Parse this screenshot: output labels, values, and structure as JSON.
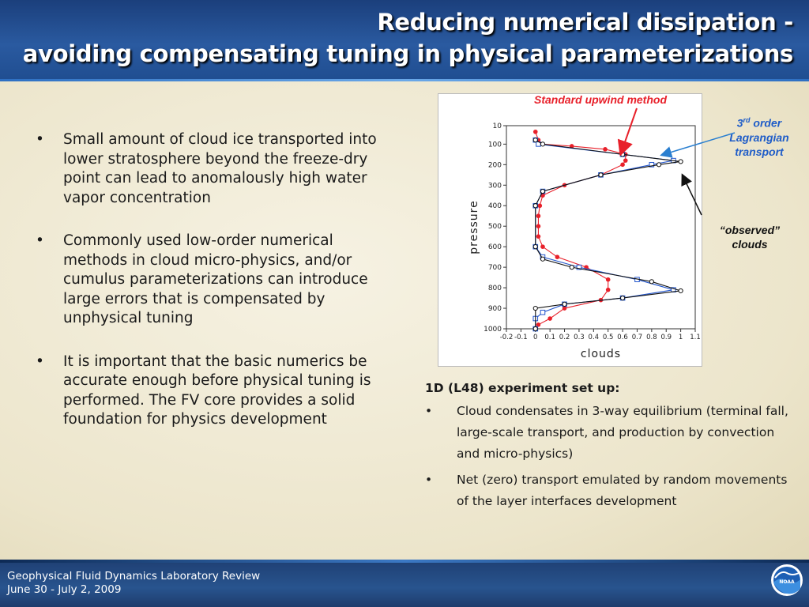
{
  "slide": {
    "title_line1": "Reducing numerical dissipation -",
    "title_line2": "avoiding compensating tuning in physical parameterizations"
  },
  "left_bullets": [
    {
      "text": "Small amount of cloud ice transported into lower stratosphere beyond the freeze-dry point  can lead to anomalously  high water vapor concentration"
    },
    {
      "text": "Commonly used low-order numerical methods in cloud micro-physics, and/or cumulus parameterizations can introduce large errors that is compensated by unphysical tuning"
    },
    {
      "text": "It is important that the basic numerics be accurate enough before physical tuning is performed. The FV core provides a solid foundation for physics development"
    }
  ],
  "bullet_char": "•",
  "annotations": {
    "standard_upwind": "Standard upwind method",
    "lagrangian_sup": "rd",
    "lagrangian_pre": "3",
    "lagrangian_rest": " order Lagrangian transport",
    "observed": "“observed” clouds"
  },
  "right": {
    "heading": "1D (L48) experiment set up:",
    "items": [
      {
        "text": "Cloud condensates in 3-way equilibrium (terminal fall, large-scale transport, and production by convection and micro-physics)"
      },
      {
        "text": "Net (zero) transport emulated by random movements of the layer interfaces development"
      }
    ]
  },
  "footer": {
    "line1": "Geophysical Fluid Dynamics Laboratory Review",
    "line2": "June 30 - July 2, 2009",
    "logo_text": "NOAA"
  },
  "colors": {
    "upwind": "#e8202a",
    "lagrangian": "#2255cc",
    "observed": "#111111"
  },
  "chart_data": {
    "type": "line",
    "xlabel": "clouds",
    "ylabel": "pressure",
    "xlim": [
      -0.2,
      1.1
    ],
    "ylim": [
      1000,
      10
    ],
    "xticks": [
      -0.2,
      -0.1,
      0,
      0.1,
      0.2,
      0.3,
      0.4,
      0.5,
      0.6,
      0.7,
      0.8,
      0.9,
      1,
      1.1
    ],
    "xtick_labels": [
      "-0.2",
      "-0.1",
      "0",
      "0.1",
      "0.2",
      "0.3",
      "0.4",
      "0.5",
      "0.6",
      "0.7",
      "0.8",
      "0.9",
      "1",
      "1.1"
    ],
    "yticks": [
      10,
      100,
      200,
      300,
      400,
      500,
      600,
      700,
      800,
      900,
      1000
    ],
    "series": [
      {
        "name": "Standard upwind method",
        "color": "#e8202a",
        "marker": "circle-filled",
        "points": [
          [
            0,
            40
          ],
          [
            0.02,
            80
          ],
          [
            0.05,
            100
          ],
          [
            0.25,
            110
          ],
          [
            0.48,
            125
          ],
          [
            0.62,
            150
          ],
          [
            0.62,
            180
          ],
          [
            0.6,
            200
          ],
          [
            0.45,
            250
          ],
          [
            0.2,
            300
          ],
          [
            0.05,
            350
          ],
          [
            0.03,
            400
          ],
          [
            0.02,
            450
          ],
          [
            0.02,
            500
          ],
          [
            0.02,
            550
          ],
          [
            0.05,
            600
          ],
          [
            0.15,
            650
          ],
          [
            0.35,
            700
          ],
          [
            0.5,
            760
          ],
          [
            0.5,
            810
          ],
          [
            0.45,
            860
          ],
          [
            0.2,
            900
          ],
          [
            0.1,
            950
          ],
          [
            0.02,
            980
          ]
        ]
      },
      {
        "name": "3rd order Lagrangian transport",
        "color": "#2255cc",
        "marker": "square-open",
        "points": [
          [
            0,
            80
          ],
          [
            0.02,
            100
          ],
          [
            0.6,
            150
          ],
          [
            0.95,
            180
          ],
          [
            0.8,
            200
          ],
          [
            0.45,
            250
          ],
          [
            0.05,
            330
          ],
          [
            0,
            400
          ],
          [
            0,
            600
          ],
          [
            0.05,
            650
          ],
          [
            0.3,
            700
          ],
          [
            0.7,
            760
          ],
          [
            0.95,
            810
          ],
          [
            0.6,
            850
          ],
          [
            0.2,
            880
          ],
          [
            0.05,
            920
          ],
          [
            0,
            950
          ],
          [
            0,
            1000
          ]
        ]
      },
      {
        "name": "“observed” clouds",
        "color": "#111111",
        "marker": "circle-open",
        "points": [
          [
            0,
            80
          ],
          [
            0.05,
            100
          ],
          [
            0.6,
            150
          ],
          [
            1,
            185
          ],
          [
            0.85,
            200
          ],
          [
            0.45,
            250
          ],
          [
            0.05,
            330
          ],
          [
            0,
            400
          ],
          [
            0,
            600
          ],
          [
            0.05,
            660
          ],
          [
            0.25,
            700
          ],
          [
            0.8,
            770
          ],
          [
            1,
            815
          ],
          [
            0.6,
            850
          ],
          [
            0.2,
            880
          ],
          [
            0,
            900
          ],
          [
            0,
            1000
          ]
        ]
      }
    ]
  }
}
